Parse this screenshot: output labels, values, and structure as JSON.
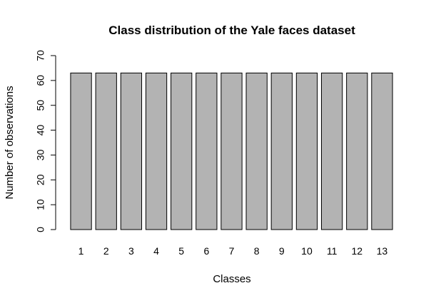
{
  "chart_data": {
    "type": "bar",
    "title": "Class distribution of the Yale faces dataset",
    "xlabel": "Classes",
    "ylabel": "Number of observations",
    "categories": [
      "1",
      "2",
      "3",
      "4",
      "5",
      "6",
      "7",
      "8",
      "9",
      "10",
      "11",
      "12",
      "13"
    ],
    "values": [
      63,
      63,
      63,
      63,
      63,
      63,
      63,
      63,
      63,
      63,
      63,
      63,
      63
    ],
    "ylim": [
      0,
      70
    ],
    "yticks": [
      "0",
      "10",
      "20",
      "30",
      "40",
      "50",
      "60",
      "70"
    ],
    "bar_color": "#b3b3b3",
    "grid": false,
    "legend": "none"
  }
}
